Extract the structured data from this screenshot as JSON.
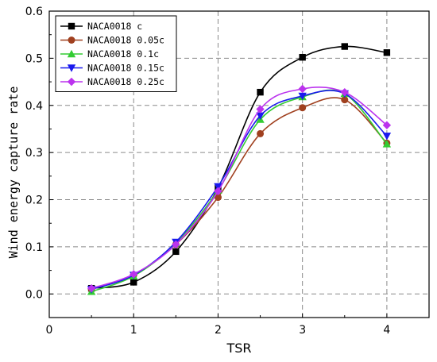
{
  "chart_data": {
    "type": "line",
    "title": "",
    "xlabel": "TSR",
    "ylabel": "Wind energy capture rate",
    "xlim": [
      0,
      4.5
    ],
    "ylim": [
      -0.05,
      0.6
    ],
    "xticks": [
      0,
      1,
      2,
      3,
      4
    ],
    "xtick_labels": [
      "0",
      "1",
      "2",
      "3",
      "4"
    ],
    "yticks": [
      0.0,
      0.1,
      0.2,
      0.3,
      0.4,
      0.5,
      0.6
    ],
    "ytick_labels": [
      "0.0",
      "0.1",
      "0.2",
      "0.3",
      "0.4",
      "0.5",
      "0.6"
    ],
    "grid": true,
    "legend_position": "top-left",
    "x": [
      0.5,
      1,
      1.5,
      2,
      2.5,
      3,
      3.5,
      4
    ],
    "series": [
      {
        "name": "NACA0018 c",
        "marker": "square",
        "color": "#000000",
        "values": [
          0.012,
          0.025,
          0.09,
          0.225,
          0.428,
          0.502,
          0.525,
          0.512
        ]
      },
      {
        "name": "NACA0018 0.05c",
        "marker": "circle",
        "color": "#a0401f",
        "values": [
          0.01,
          0.04,
          0.105,
          0.205,
          0.34,
          0.395,
          0.412,
          0.32
        ]
      },
      {
        "name": "NACA0018 0.1c",
        "marker": "triangle-up",
        "color": "#33cc33",
        "values": [
          0.005,
          0.038,
          0.108,
          0.22,
          0.37,
          0.418,
          0.425,
          0.318
        ]
      },
      {
        "name": "NACA0018 0.15c",
        "marker": "triangle-down",
        "color": "#1a1aee",
        "values": [
          0.01,
          0.04,
          0.11,
          0.228,
          0.378,
          0.42,
          0.425,
          0.335
        ]
      },
      {
        "name": "NACA0018 0.25c",
        "marker": "diamond",
        "color": "#bb33ee",
        "values": [
          0.012,
          0.042,
          0.105,
          0.218,
          0.392,
          0.435,
          0.428,
          0.358
        ]
      }
    ]
  }
}
